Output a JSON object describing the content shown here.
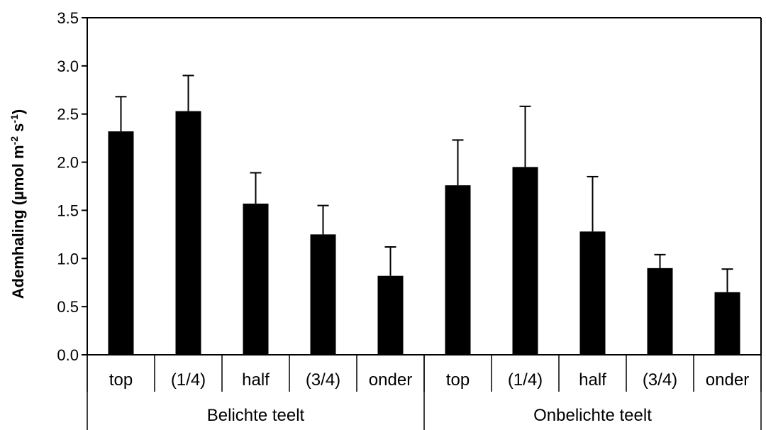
{
  "chart_data": {
    "type": "bar",
    "ylabel": "Ademhaling (µmol m-2 s-1)",
    "ylabel_parts": {
      "main": "Ademhaling (µmol m",
      "sup1": "-2",
      "mid": " s",
      "sup2": "-1",
      "end": ")"
    },
    "ylim": [
      0,
      3.5
    ],
    "yticks": [
      "0.0",
      "0.5",
      "1.0",
      "1.5",
      "2.0",
      "2.5",
      "3.0",
      "3.5"
    ],
    "ytick_values": [
      0,
      0.5,
      1.0,
      1.5,
      2.0,
      2.5,
      3.0,
      3.5
    ],
    "grid": false,
    "bar_color": "#000000",
    "categories": [
      "top",
      "(1/4)",
      "half",
      "(3/4)",
      "onder",
      "top",
      "(1/4)",
      "half",
      "(3/4)",
      "onder"
    ],
    "groups": [
      {
        "label": "Belichte teelt",
        "count": 5
      },
      {
        "label": "Onbelichte teelt",
        "count": 5
      }
    ],
    "values": [
      2.32,
      2.53,
      1.57,
      1.25,
      0.82,
      1.76,
      1.95,
      1.28,
      0.9,
      0.65
    ],
    "error_upper": [
      0.36,
      0.37,
      0.32,
      0.3,
      0.3,
      0.47,
      0.63,
      0.57,
      0.14,
      0.24
    ]
  }
}
